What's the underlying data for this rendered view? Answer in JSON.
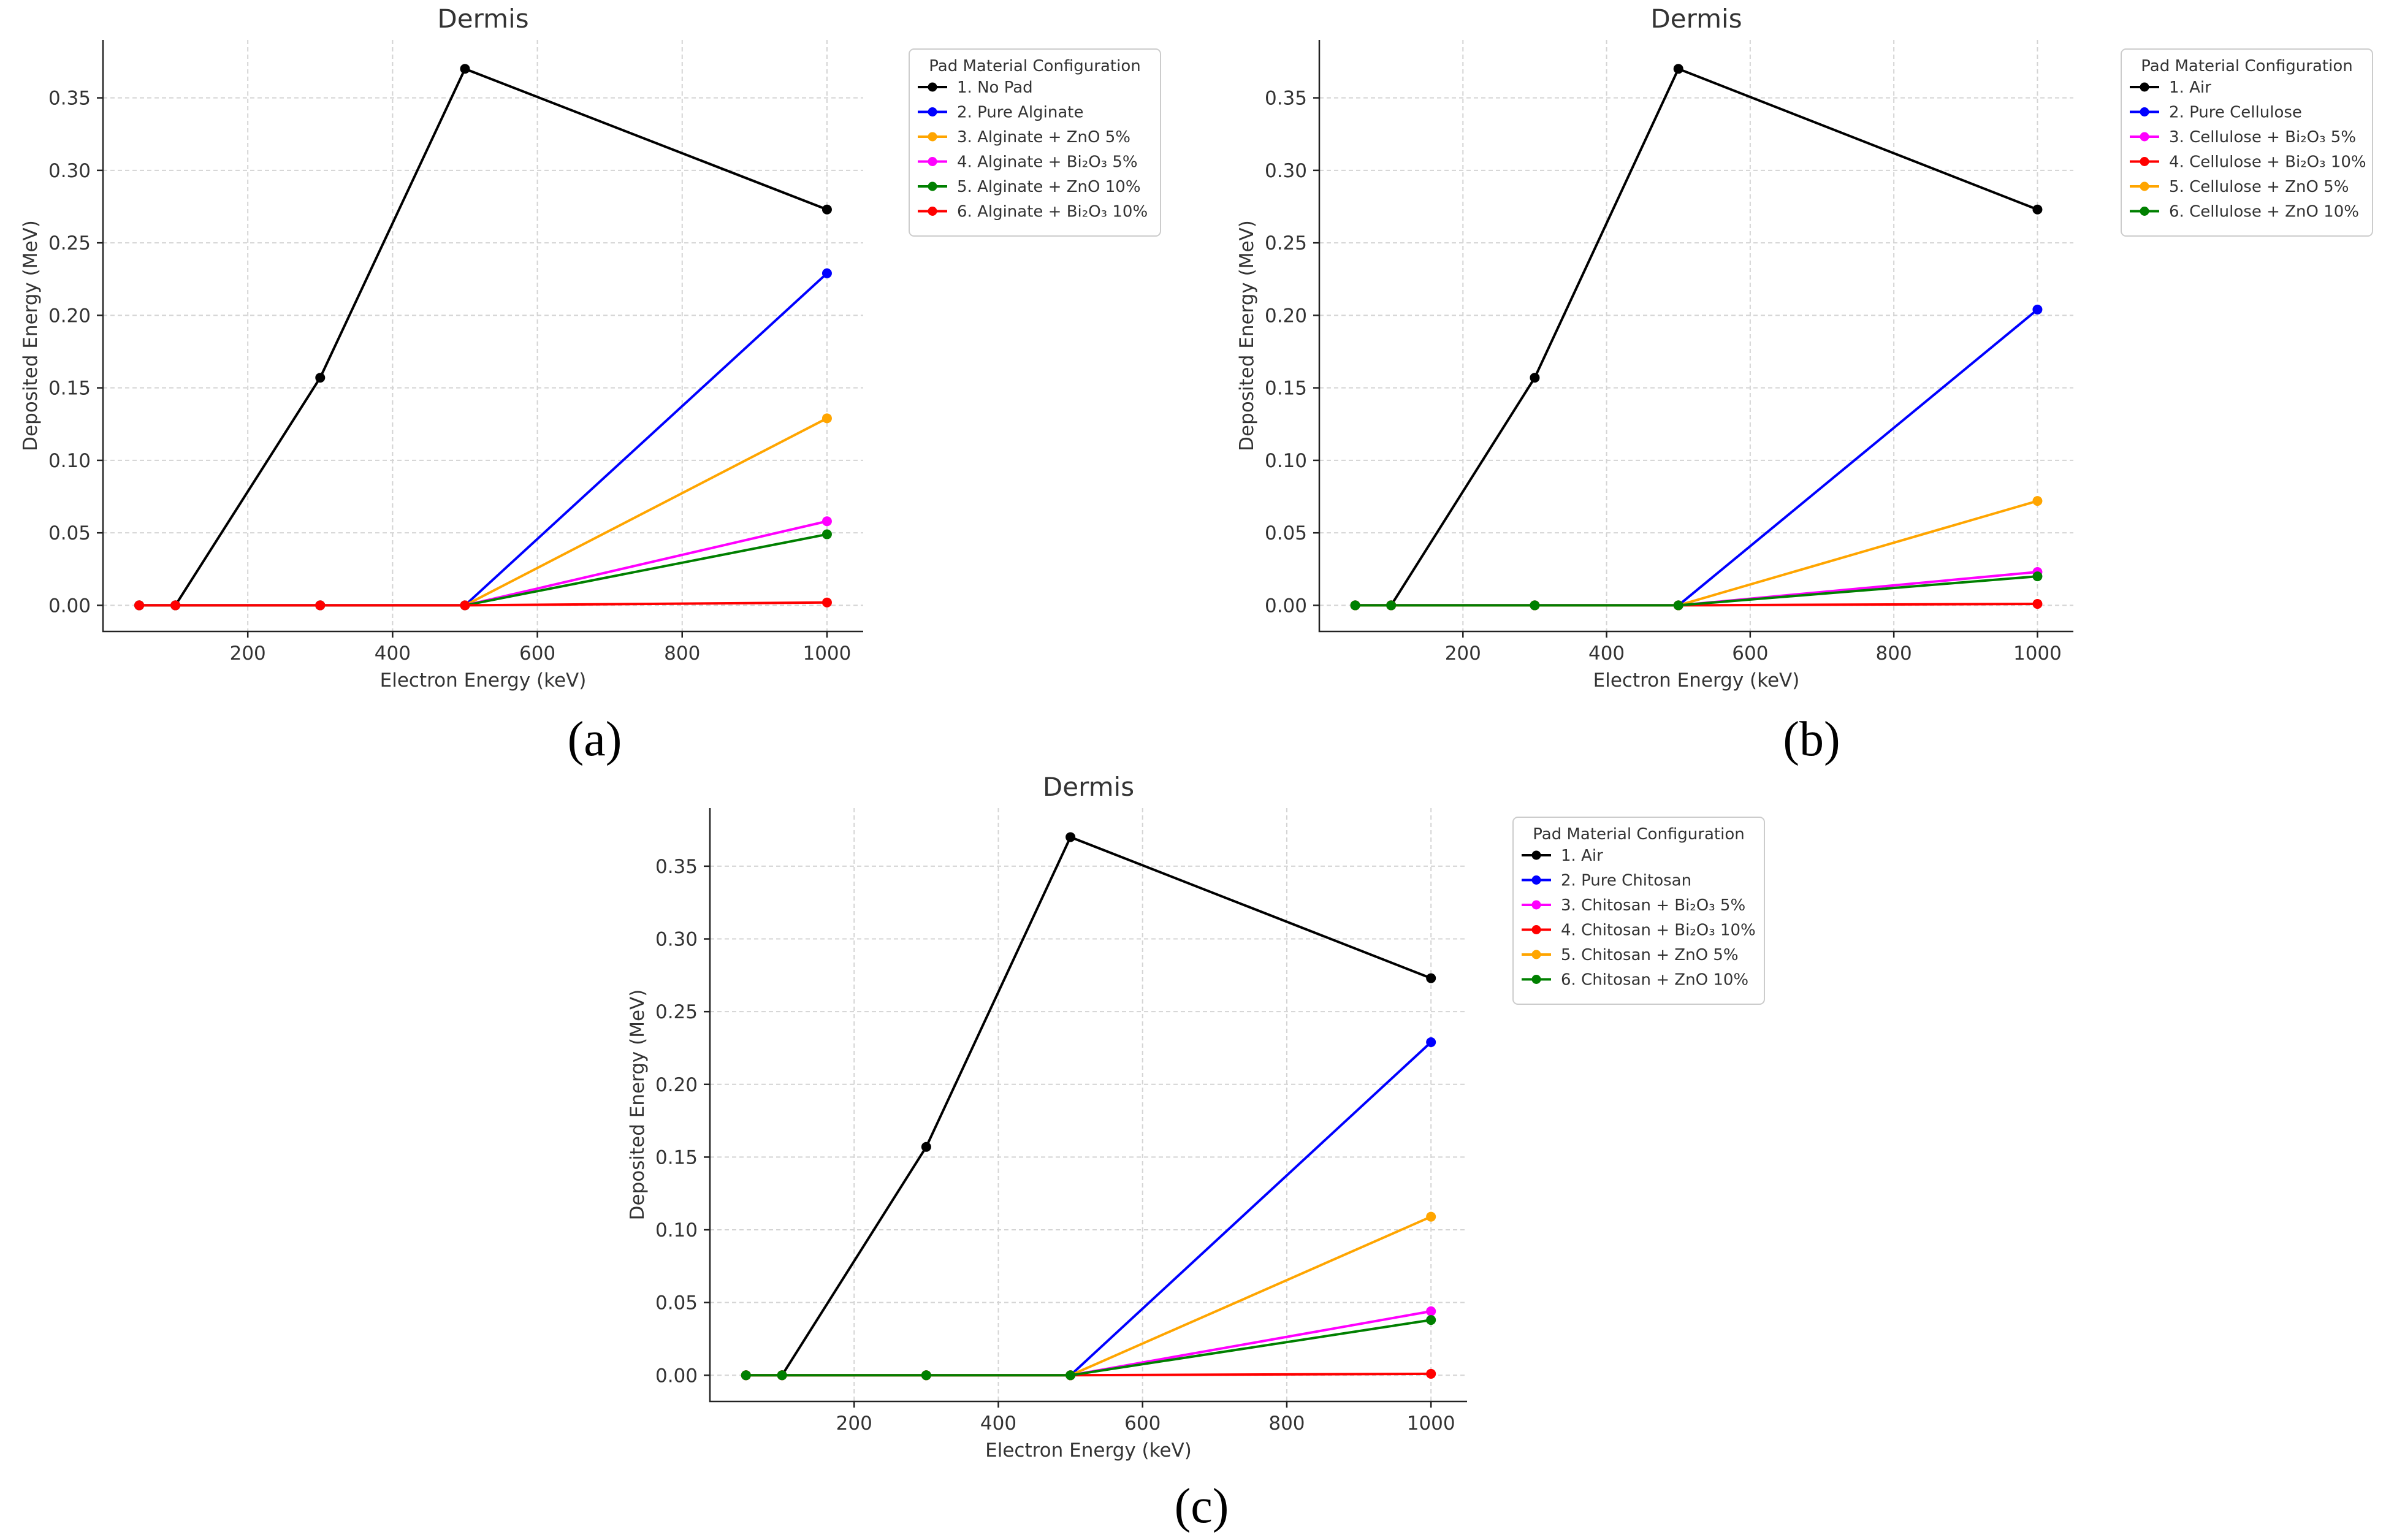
{
  "chart_data": [
    {
      "type": "line",
      "panel_label": "(a)",
      "title": "Dermis",
      "xlabel": "Electron Energy (keV)",
      "ylabel": "Deposited Energy (MeV)",
      "xlim": [
        0,
        1050
      ],
      "ylim": [
        -0.018,
        0.39
      ],
      "xticks": [
        200,
        400,
        600,
        800,
        1000
      ],
      "xtick_labels": [
        "200",
        "400",
        "600",
        "800",
        "1000"
      ],
      "yticks": [
        0,
        0.05,
        0.1,
        0.15,
        0.2,
        0.25,
        0.3,
        0.35
      ],
      "ytick_labels": [
        "0.00",
        "0.05",
        "0.10",
        "0.15",
        "0.20",
        "0.25",
        "0.30",
        "0.35"
      ],
      "grid": true,
      "legend_title": "Pad Material Configuration",
      "legend_position": "outside-right",
      "x": [
        50,
        100,
        300,
        500,
        1000
      ],
      "series": [
        {
          "name": "1. No Pad",
          "color": "#000000",
          "values": [
            0,
            0,
            0.157,
            0.37,
            0.273
          ]
        },
        {
          "name": "2. Pure Alginate",
          "color": "#0000ff",
          "values": [
            0,
            0,
            0,
            0,
            0.229
          ]
        },
        {
          "name": "3. Alginate + ZnO 5%",
          "color": "#ffa500",
          "values": [
            0,
            0,
            0,
            0,
            0.129
          ]
        },
        {
          "name": "4. Alginate + Bi₂O₃ 5%",
          "color": "#ff00ff",
          "values": [
            0,
            0,
            0,
            0,
            0.058
          ]
        },
        {
          "name": "5. Alginate + ZnO 10%",
          "color": "#008000",
          "values": [
            0,
            0,
            0,
            0,
            0.049
          ]
        },
        {
          "name": "6. Alginate + Bi₂O₃ 10%",
          "color": "#ff0000",
          "values": [
            0,
            0,
            0,
            0,
            0.002
          ]
        }
      ]
    },
    {
      "type": "line",
      "panel_label": "(b)",
      "title": "Dermis",
      "xlabel": "Electron Energy (keV)",
      "ylabel": "Deposited Energy (MeV)",
      "xlim": [
        0,
        1050
      ],
      "ylim": [
        -0.018,
        0.39
      ],
      "xticks": [
        200,
        400,
        600,
        800,
        1000
      ],
      "xtick_labels": [
        "200",
        "400",
        "600",
        "800",
        "1000"
      ],
      "yticks": [
        0,
        0.05,
        0.1,
        0.15,
        0.2,
        0.25,
        0.3,
        0.35
      ],
      "ytick_labels": [
        "0.00",
        "0.05",
        "0.10",
        "0.15",
        "0.20",
        "0.25",
        "0.30",
        "0.35"
      ],
      "grid": true,
      "legend_title": "Pad Material Configuration",
      "legend_position": "outside-right",
      "x": [
        50,
        100,
        300,
        500,
        1000
      ],
      "series": [
        {
          "name": "1. Air",
          "color": "#000000",
          "values": [
            0,
            0,
            0.157,
            0.37,
            0.273
          ]
        },
        {
          "name": "2. Pure Cellulose",
          "color": "#0000ff",
          "values": [
            0,
            0,
            0,
            0,
            0.204
          ]
        },
        {
          "name": "3. Cellulose + Bi₂O₃ 5%",
          "color": "#ff00ff",
          "values": [
            0,
            0,
            0,
            0,
            0.023
          ]
        },
        {
          "name": "4. Cellulose + Bi₂O₃ 10%",
          "color": "#ff0000",
          "values": [
            0,
            0,
            0,
            0,
            0.001
          ]
        },
        {
          "name": "5. Cellulose + ZnO 5%",
          "color": "#ffa500",
          "values": [
            0,
            0,
            0,
            0,
            0.072
          ]
        },
        {
          "name": "6. Cellulose + ZnO 10%",
          "color": "#008000",
          "values": [
            0,
            0,
            0,
            0,
            0.02
          ]
        }
      ]
    },
    {
      "type": "line",
      "panel_label": "(c)",
      "title": "Dermis",
      "xlabel": "Electron Energy (keV)",
      "ylabel": "Deposited Energy (MeV)",
      "xlim": [
        0,
        1050
      ],
      "ylim": [
        -0.018,
        0.39
      ],
      "xticks": [
        200,
        400,
        600,
        800,
        1000
      ],
      "xtick_labels": [
        "200",
        "400",
        "600",
        "800",
        "1000"
      ],
      "yticks": [
        0,
        0.05,
        0.1,
        0.15,
        0.2,
        0.25,
        0.3,
        0.35
      ],
      "ytick_labels": [
        "0.00",
        "0.05",
        "0.10",
        "0.15",
        "0.20",
        "0.25",
        "0.30",
        "0.35"
      ],
      "grid": true,
      "legend_title": "Pad Material Configuration",
      "legend_position": "outside-right",
      "x": [
        50,
        100,
        300,
        500,
        1000
      ],
      "series": [
        {
          "name": "1. Air",
          "color": "#000000",
          "values": [
            0,
            0,
            0.157,
            0.37,
            0.273
          ]
        },
        {
          "name": "2. Pure Chitosan",
          "color": "#0000ff",
          "values": [
            0,
            0,
            0,
            0,
            0.229
          ]
        },
        {
          "name": "3. Chitosan + Bi₂O₃ 5%",
          "color": "#ff00ff",
          "values": [
            0,
            0,
            0,
            0,
            0.044
          ]
        },
        {
          "name": "4. Chitosan + Bi₂O₃ 10%",
          "color": "#ff0000",
          "values": [
            0,
            0,
            0,
            0,
            0.001
          ]
        },
        {
          "name": "5. Chitosan + ZnO 5%",
          "color": "#ffa500",
          "values": [
            0,
            0,
            0,
            0,
            0.109
          ]
        },
        {
          "name": "6. Chitosan + ZnO 10%",
          "color": "#008000",
          "values": [
            0,
            0,
            0,
            0,
            0.038
          ]
        }
      ]
    }
  ]
}
